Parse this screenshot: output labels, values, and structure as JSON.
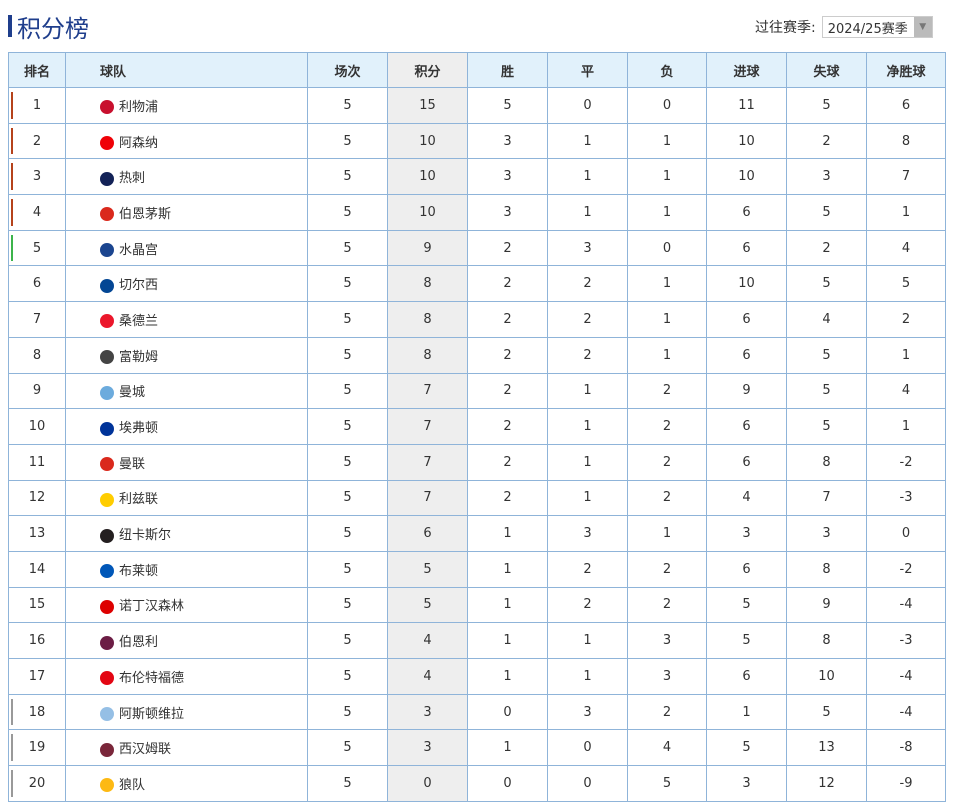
{
  "title": "积分榜",
  "season": {
    "label": "过往赛季:",
    "selected": "2024/25赛季"
  },
  "headers": [
    "排名",
    "球队",
    "场次",
    "积分",
    "胜",
    "平",
    "负",
    "进球",
    "失球",
    "净胜球"
  ],
  "zone_colors": {
    "ucl": "#b5421b",
    "uel": "#3cb44b",
    "rel": "#999999"
  },
  "rows": [
    [
      "1",
      "利物浦",
      "5",
      "15",
      "5",
      "0",
      "0",
      "11",
      "5",
      "6",
      "ucl",
      "#c8102e"
    ],
    [
      "2",
      "阿森纳",
      "5",
      "10",
      "3",
      "1",
      "1",
      "10",
      "2",
      "8",
      "ucl",
      "#ef0107"
    ],
    [
      "3",
      "热刺",
      "5",
      "10",
      "3",
      "1",
      "1",
      "10",
      "3",
      "7",
      "ucl",
      "#132257"
    ],
    [
      "4",
      "伯恩茅斯",
      "5",
      "10",
      "3",
      "1",
      "1",
      "6",
      "5",
      "1",
      "ucl",
      "#da291c"
    ],
    [
      "5",
      "水晶宫",
      "5",
      "9",
      "2",
      "3",
      "0",
      "6",
      "2",
      "4",
      "uel",
      "#1b458f"
    ],
    [
      "6",
      "切尔西",
      "5",
      "8",
      "2",
      "2",
      "1",
      "10",
      "5",
      "5",
      "",
      "#034694"
    ],
    [
      "7",
      "桑德兰",
      "5",
      "8",
      "2",
      "2",
      "1",
      "6",
      "4",
      "2",
      "",
      "#eb172b"
    ],
    [
      "8",
      "富勒姆",
      "5",
      "8",
      "2",
      "2",
      "1",
      "6",
      "5",
      "1",
      "",
      "#444444"
    ],
    [
      "9",
      "曼城",
      "5",
      "7",
      "2",
      "1",
      "2",
      "9",
      "5",
      "4",
      "",
      "#6cabdd"
    ],
    [
      "10",
      "埃弗顿",
      "5",
      "7",
      "2",
      "1",
      "2",
      "6",
      "5",
      "1",
      "",
      "#003399"
    ],
    [
      "11",
      "曼联",
      "5",
      "7",
      "2",
      "1",
      "2",
      "6",
      "8",
      "-2",
      "",
      "#da291c"
    ],
    [
      "12",
      "利兹联",
      "5",
      "7",
      "2",
      "1",
      "2",
      "4",
      "7",
      "-3",
      "",
      "#ffcd00"
    ],
    [
      "13",
      "纽卡斯尔",
      "5",
      "6",
      "1",
      "3",
      "1",
      "3",
      "3",
      "0",
      "",
      "#241f20"
    ],
    [
      "14",
      "布莱顿",
      "5",
      "5",
      "1",
      "2",
      "2",
      "6",
      "8",
      "-2",
      "",
      "#0057b8"
    ],
    [
      "15",
      "诺丁汉森林",
      "5",
      "5",
      "1",
      "2",
      "2",
      "5",
      "9",
      "-4",
      "",
      "#dd0000"
    ],
    [
      "16",
      "伯恩利",
      "5",
      "4",
      "1",
      "1",
      "3",
      "5",
      "8",
      "-3",
      "",
      "#6c1d45"
    ],
    [
      "17",
      "布伦特福德",
      "5",
      "4",
      "1",
      "1",
      "3",
      "6",
      "10",
      "-4",
      "",
      "#e30613"
    ],
    [
      "18",
      "阿斯顿维拉",
      "5",
      "3",
      "0",
      "3",
      "2",
      "1",
      "5",
      "-4",
      "rel",
      "#95bfe5"
    ],
    [
      "19",
      "西汉姆联",
      "5",
      "3",
      "1",
      "0",
      "4",
      "5",
      "13",
      "-8",
      "rel",
      "#7a263a"
    ],
    [
      "20",
      "狼队",
      "5",
      "0",
      "0",
      "0",
      "5",
      "3",
      "12",
      "-9",
      "rel",
      "#fdb913"
    ]
  ]
}
